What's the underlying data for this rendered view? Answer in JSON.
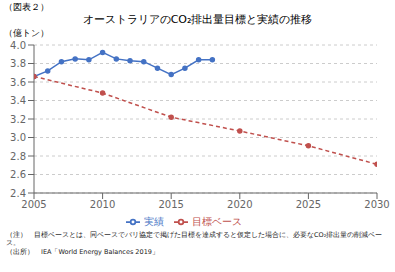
{
  "chart_data": {
    "type": "line",
    "title": "オーストラリアのCO₂排出量目標と実績の推移",
    "ylabel": "（億トン）",
    "annotations": [
      "（図表２）",
      "（注）　目標ベースとは、同ベースでパリ協定で掲げた目標を達成すると仮定した場合に、必要なCO₂排出量の削減ベース。",
      "（出所）　IEA「World Energy Balances 2019」"
    ],
    "series": [
      {
        "name": "実績",
        "color": "#4472C4",
        "marker": "circle",
        "line_style": "solid",
        "x": [
          2005,
          2006,
          2007,
          2008,
          2009,
          2010,
          2011,
          2012,
          2013,
          2014,
          2015,
          2016,
          2017,
          2018
        ],
        "values": [
          3.66,
          3.72,
          3.82,
          3.85,
          3.84,
          3.92,
          3.85,
          3.83,
          3.82,
          3.75,
          3.68,
          3.75,
          3.84,
          3.84
        ]
      },
      {
        "name": "目標ベース",
        "color": "#C0504D",
        "marker": "circle",
        "line_style": "dashed",
        "x": [
          2005,
          2010,
          2015,
          2020,
          2025,
          2030
        ],
        "values": [
          3.66,
          3.48,
          3.22,
          3.07,
          2.91,
          2.71
        ]
      }
    ],
    "xlim": [
      2005,
      2030
    ],
    "xticks": [
      2005,
      2010,
      2015,
      2020,
      2025,
      2030
    ],
    "ylim": [
      2.4,
      4.0
    ],
    "yticks": [
      2.4,
      2.6,
      2.8,
      {
        "value": 3.0,
        "label": "3.0"
      },
      3.2,
      3.4,
      3.6,
      3.8,
      {
        "value": 4.0,
        "label": "4.0"
      }
    ],
    "grid": true,
    "legend": "bottom"
  }
}
